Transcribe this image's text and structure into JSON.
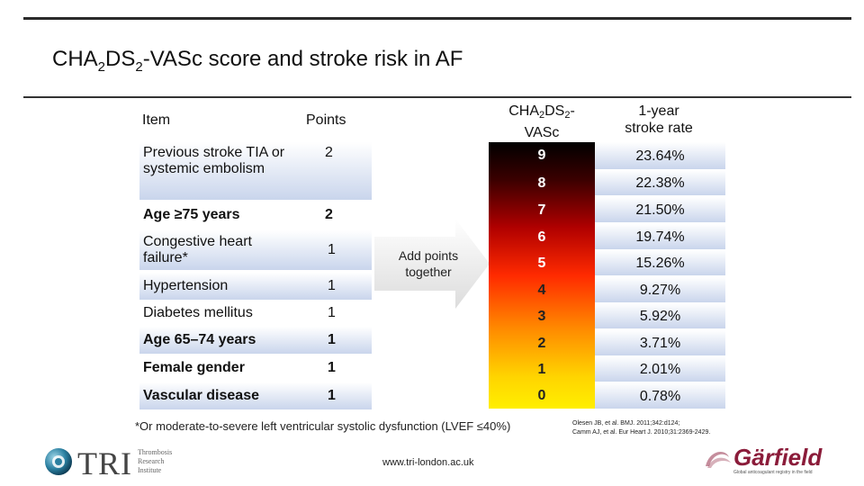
{
  "title": {
    "prefix": "CHA",
    "sub1": "2",
    "mid": "DS",
    "sub2": "2",
    "suffix": "-VASc score and stroke risk in AF"
  },
  "table_left": {
    "header_item": "Item",
    "header_points": "Points",
    "rows": [
      {
        "item": "Previous stroke TIA or systemic embolism",
        "points": "2"
      },
      {
        "item": "Age ≥75 years",
        "points": "2"
      },
      {
        "item": "Congestive heart failure*",
        "points": "1"
      },
      {
        "item": "Hypertension",
        "points": "1"
      },
      {
        "item": "Diabetes mellitus",
        "points": "1"
      },
      {
        "item": "Age 65–74 years",
        "points": "1"
      },
      {
        "item": "Female gender",
        "points": "1"
      },
      {
        "item": "Vascular disease",
        "points": "1"
      }
    ]
  },
  "arrow_label": "Add points together",
  "table_right": {
    "header_score": {
      "prefix": "CHA",
      "sub1": "2",
      "mid": "DS",
      "sub2": "2",
      "suffix": "-",
      "line2": "VASc"
    },
    "header_rate": {
      "line1": "1-year",
      "line2": "stroke rate"
    },
    "rows": [
      {
        "score": "9",
        "rate": "23.64%"
      },
      {
        "score": "8",
        "rate": "22.38%"
      },
      {
        "score": "7",
        "rate": "21.50%"
      },
      {
        "score": "6",
        "rate": "19.74%"
      },
      {
        "score": "5",
        "rate": "15.26%"
      },
      {
        "score": "4",
        "rate": "9.27%"
      },
      {
        "score": "3",
        "rate": "5.92%"
      },
      {
        "score": "2",
        "rate": "3.71%"
      },
      {
        "score": "1",
        "rate": "2.01%"
      },
      {
        "score": "0",
        "rate": "0.78%"
      }
    ]
  },
  "footnote": "*Or moderate-to-severe left ventricular systolic dysfunction (LVEF ≤40%)",
  "references": [
    "Olesen JB, et al. BMJ. 2011;342:d124;",
    "Camm AJ, et al. Eur Heart J. 2010;31:2369-2429."
  ],
  "url": "www.tri-london.ac.uk",
  "logos": {
    "tri": {
      "name": "TRI",
      "line1": "Thrombosis",
      "line2": "Research",
      "line3": "Institute"
    },
    "garfield": {
      "name": "Gärfield",
      "tagline": "Global anticoagulant registry in the field"
    }
  },
  "colors": {
    "row_gradient_bottom": "#c9d5ec",
    "rule": "#2a2a2a",
    "garfield": "#8b1c3a"
  }
}
